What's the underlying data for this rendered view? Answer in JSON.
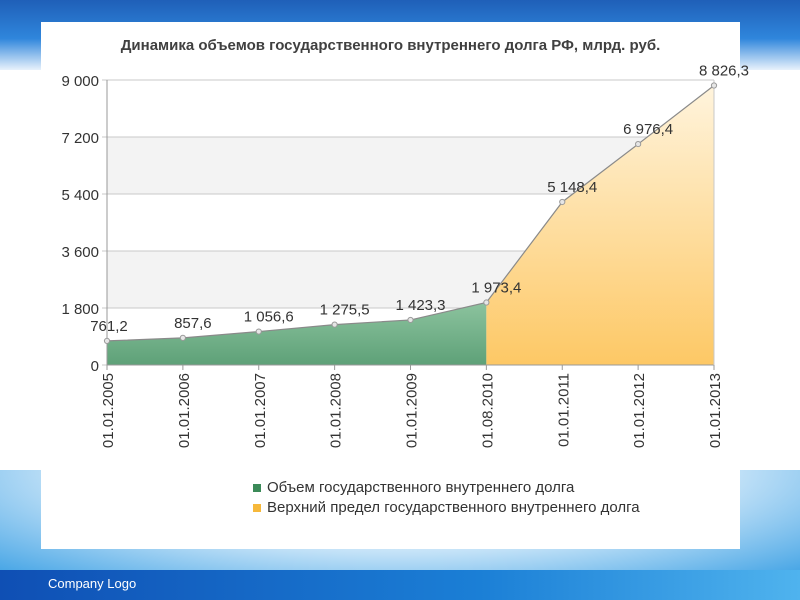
{
  "footer": {
    "text": "Company   Logo"
  },
  "chart_data": {
    "type": "area",
    "title": "Динамика объемов государственного внутреннего долга РФ, млрд. руб.",
    "categories": [
      "01.01.2005",
      "01.01.2006",
      "01.01.2007",
      "01.01.2008",
      "01.01.2009",
      "01.08.2010",
      "01.01.2011",
      "01.01.2012",
      "01.01.2013"
    ],
    "values": [
      761.2,
      857.6,
      1056.6,
      1275.5,
      1423.3,
      1973.4,
      5148.4,
      6976.4,
      8826.3
    ],
    "data_labels": [
      "761,2",
      "857,6",
      "1 056,6",
      "1 275,5",
      "1 423,3",
      "1 973,4",
      "5 148,4",
      "6 976,4",
      "8 826,3"
    ],
    "y_ticks": [
      "0",
      "1 800",
      "3 600",
      "5 400",
      "7 200",
      "9 000"
    ],
    "ylim": [
      0,
      9000
    ],
    "grid": true,
    "legend_position": "bottom",
    "series": [
      {
        "name": "Объем государственного внутреннего долга",
        "from": 0,
        "to": 5,
        "color": "#3b8a58"
      },
      {
        "name": "Верхний предел государственного внутреннего долга",
        "from": 5,
        "to": 8,
        "color": "#f6b83b"
      }
    ]
  }
}
